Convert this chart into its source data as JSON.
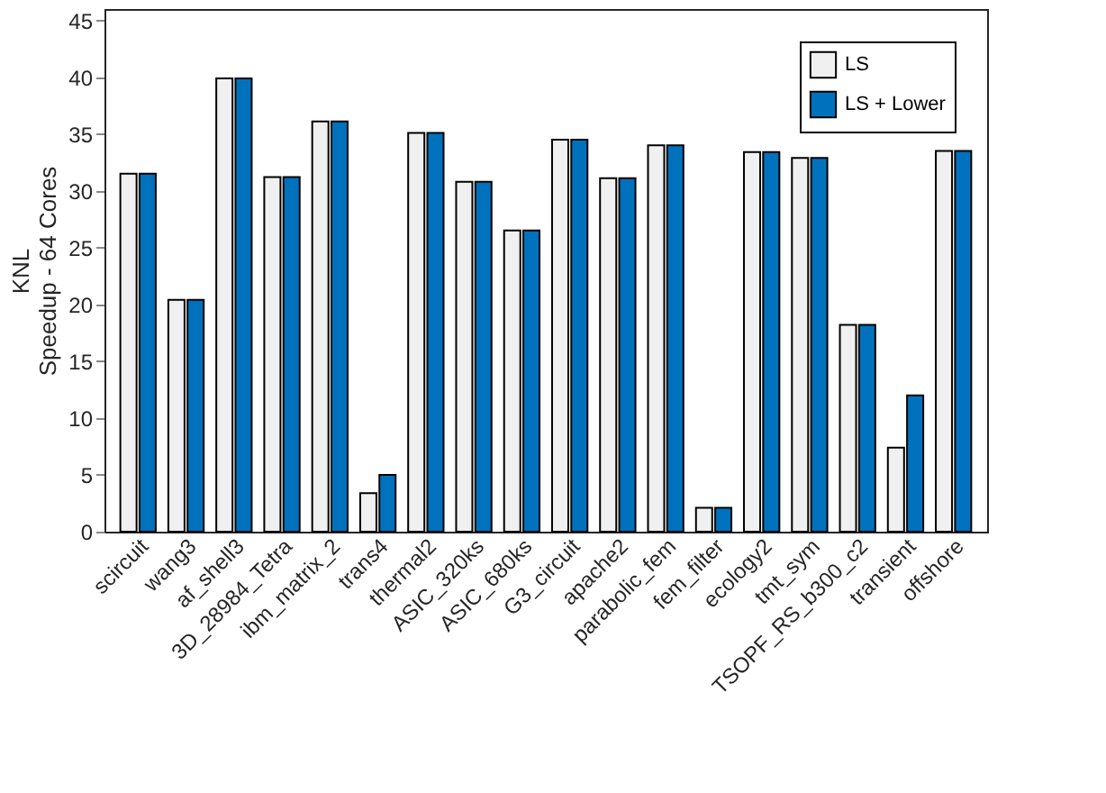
{
  "chart_data": {
    "type": "bar",
    "ylabel": "KNL\nSpeedup - 64 Cores",
    "categories": [
      "scircuit",
      "wang3",
      "af_shell3",
      "3D_28984_Tetra",
      "ibm_matrix_2",
      "trans4",
      "thermal2",
      "ASIC_320ks",
      "ASIC_680ks",
      "G3_circuit",
      "apache2",
      "parabolic_fem",
      "fem_filter",
      "ecology2",
      "tmt_sym",
      "TSOPF_RS_b300_c2",
      "transient",
      "offshore"
    ],
    "series": [
      {
        "name": "LS",
        "color": "#f0f0f0",
        "values": [
          31.5,
          20.4,
          39.9,
          31.2,
          36.1,
          3.4,
          35.1,
          30.8,
          26.5,
          34.5,
          31.1,
          34.0,
          2.1,
          33.4,
          32.9,
          18.2,
          7.4,
          33.5
        ]
      },
      {
        "name": "LS + Lower",
        "color": "#0072bd",
        "values": [
          31.5,
          20.4,
          39.9,
          31.2,
          36.1,
          5.0,
          35.1,
          30.8,
          26.5,
          34.5,
          31.1,
          34.0,
          2.1,
          33.4,
          32.9,
          18.2,
          12.0,
          33.5
        ]
      }
    ],
    "ylim": [
      0,
      46
    ],
    "yticks": [
      0,
      5,
      10,
      15,
      20,
      25,
      30,
      35,
      40,
      45
    ],
    "grid": false,
    "legend": "top right"
  }
}
